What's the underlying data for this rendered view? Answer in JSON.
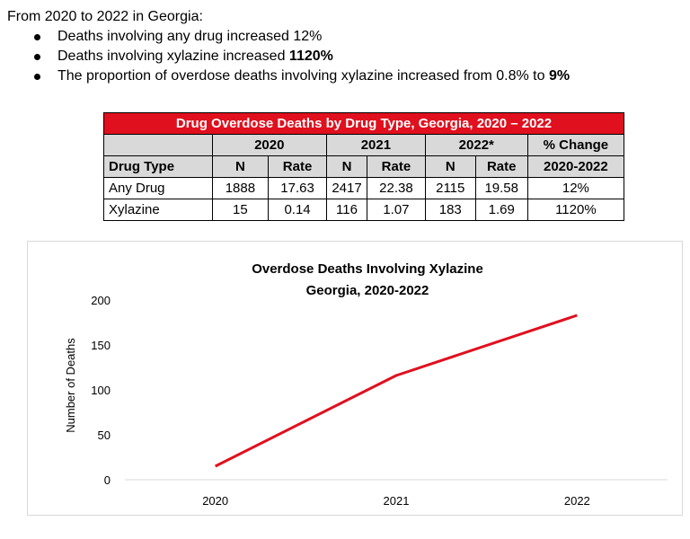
{
  "intro": {
    "heading": "From 2020 to 2022 in Georgia:",
    "bullets": [
      {
        "text": "Deaths involving any drug increased 12%",
        "bold": ""
      },
      {
        "text": "Deaths involving xylazine increased ",
        "bold": "1120%"
      },
      {
        "text": "The proportion of overdose deaths involving xylazine increased from 0.8% to ",
        "bold": "9%"
      }
    ]
  },
  "table": {
    "title": "Drug Overdose Deaths by Drug Type, Georgia, 2020 – 2022",
    "years": [
      "2020",
      "2021",
      "2022*"
    ],
    "change_header": "% Change",
    "change_range": "2020-2022",
    "drug_type_header": "Drug Type",
    "n_label": "N",
    "rate_label": "Rate",
    "rows": [
      {
        "drug": "Any Drug",
        "n2020": "1888",
        "rate2020": "17.63",
        "n2021": "2417",
        "rate2021": "22.38",
        "n2022": "2115",
        "rate2022": "19.58",
        "change": "12%"
      },
      {
        "drug": "Xylazine",
        "n2020": "15",
        "rate2020": "0.14",
        "n2021": "116",
        "rate2021": "1.07",
        "n2022": "183",
        "rate2022": "1.69",
        "change": "1120%"
      }
    ]
  },
  "chart_data": {
    "type": "line",
    "title": "Overdose Deaths Involving Xylazine",
    "subtitle": "Georgia, 2020-2022",
    "ylabel": "Number of Deaths",
    "xlabel": "",
    "categories": [
      "2020",
      "2021",
      "2022"
    ],
    "series": [
      {
        "values": [
          15,
          116,
          183
        ],
        "color": "#e0101e"
      }
    ],
    "ylim": [
      0,
      200
    ],
    "yticks": [
      0,
      50,
      100,
      150,
      200
    ],
    "grid": false,
    "legend": "none"
  }
}
